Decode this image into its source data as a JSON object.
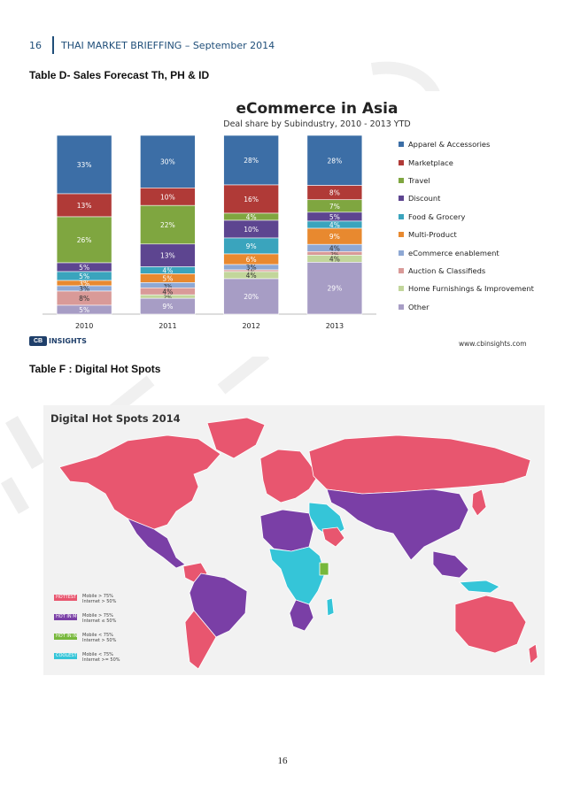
{
  "header": {
    "page_number": "16",
    "title": "THAI MARKET BRIEFFING – September 2014"
  },
  "captions": {
    "table_d": "Table D-  Sales Forecast Th, PH & ID",
    "table_f": "Table F : Digital Hot Spots"
  },
  "chart_data": {
    "type": "bar",
    "stacked": true,
    "title": "eCommerce in Asia",
    "subtitle": "Deal share by Subindustry, 2010 - 2013 YTD",
    "xlabel": "",
    "ylabel": "",
    "categories": [
      "2010",
      "2011",
      "2012",
      "2013"
    ],
    "series": [
      {
        "name": "Apparel & Accessories",
        "color": "#3c6ea6",
        "values": [
          33,
          30,
          28,
          28
        ],
        "labels": [
          "33%",
          "30%",
          "28%",
          "28%"
        ]
      },
      {
        "name": "Marketplace",
        "color": "#b03a37",
        "values": [
          13,
          10,
          16,
          8
        ],
        "labels": [
          "13%",
          "10%",
          "16%",
          "8%"
        ]
      },
      {
        "name": "Travel",
        "color": "#7fa640",
        "values": [
          26,
          22,
          4,
          7
        ],
        "labels": [
          "26%",
          "22%",
          "4%",
          "7%"
        ]
      },
      {
        "name": "Discount",
        "color": "#5d4590",
        "values": [
          5,
          13,
          10,
          5
        ],
        "labels": [
          "5%",
          "13%",
          "10%",
          "5%"
        ]
      },
      {
        "name": "Food & Grocery",
        "color": "#3aa4bd",
        "values": [
          5,
          4,
          9,
          4
        ],
        "labels": [
          "5%",
          "4%",
          "9%",
          "4%"
        ]
      },
      {
        "name": "Multi-Product",
        "color": "#e8892f",
        "values": [
          3,
          5,
          6,
          9
        ],
        "labels": [
          "3%",
          "5%",
          "6%",
          "9%"
        ]
      },
      {
        "name": "eCommerce enablement",
        "color": "#8ea8d4",
        "values": [
          3,
          3,
          3,
          4
        ],
        "labels": [
          "3%",
          "3%",
          "3%",
          "4%"
        ]
      },
      {
        "name": "Auction & Classifieds",
        "color": "#d99a98",
        "values": [
          8,
          4,
          1,
          2
        ],
        "labels": [
          "8%",
          "4%",
          "1%",
          "2%"
        ]
      },
      {
        "name": "Home Furnishings & Improvement",
        "color": "#c2d69b",
        "values": [
          0,
          2,
          4,
          4
        ],
        "labels": [
          "",
          "2%",
          "4%",
          "4%"
        ]
      },
      {
        "name": "Other",
        "color": "#a79dc5",
        "values": [
          5,
          9,
          20,
          29
        ],
        "labels": [
          "5%",
          "9%",
          "20%",
          "29%"
        ]
      }
    ],
    "ylim": [
      0,
      100
    ]
  },
  "chart_footer": {
    "logo_text": "CB",
    "logo_brand": "INSIGHTS",
    "url": "www.cbinsights.com"
  },
  "map": {
    "title": "Digital Hot Spots 2014",
    "legend": [
      {
        "label": "HOTTEST",
        "color": "#e8566f",
        "mobile": "Mobile  >  75%",
        "internet": "Internet  >  50%"
      },
      {
        "label": "HOT IN MOBILE",
        "color": "#7a3fa6",
        "mobile": "Mobile  >  75%",
        "internet": "Internet  ≤  50%"
      },
      {
        "label": "HOT IN INTERNET",
        "color": "#77b83c",
        "mobile": "Mobile  <  75%",
        "internet": "Internet  >  50%"
      },
      {
        "label": "COOLEST",
        "color": "#35c5d8",
        "mobile": "Mobile  <  75%",
        "internet": "Internet  >= 50%"
      }
    ],
    "colors": {
      "hottest": "#e8566f",
      "hot_mobile": "#7a3fa6",
      "hot_internet": "#77b83c",
      "coolest": "#35c5d8",
      "border": "#ffffff"
    }
  },
  "footer": {
    "page_number": "16"
  }
}
